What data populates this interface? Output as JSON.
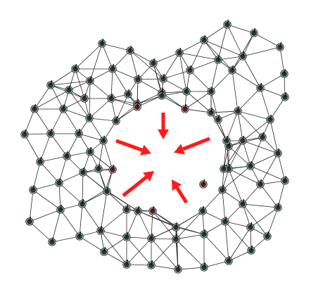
{
  "diagram": {
    "background": "#ffffff",
    "edge_color": "#2a2a2a",
    "node_color": "#1f3d30",
    "node_ring_color": "#111111",
    "boundary_node_color": "#2d5a48",
    "hole_node_color": "#5a1f1f",
    "arrow_color": "#ff1a1a"
  }
}
